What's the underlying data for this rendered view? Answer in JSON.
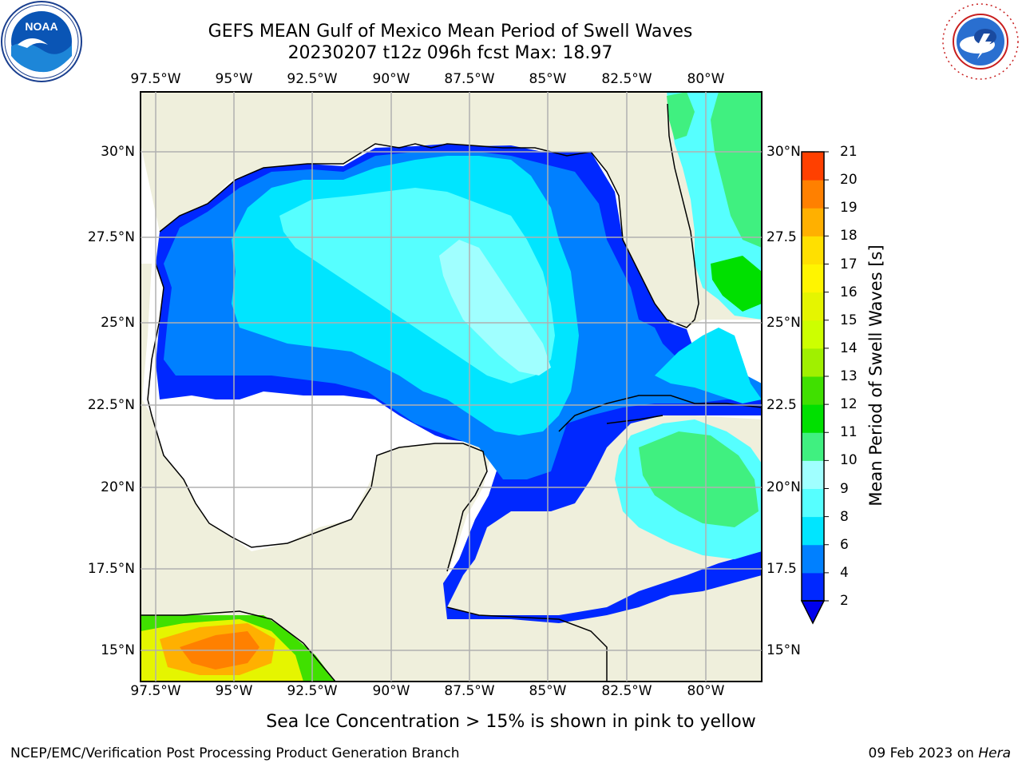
{
  "title": {
    "line1": "GEFS MEAN Gulf of Mexico Mean Period of Swell Waves",
    "line2": "20230207 t12z 096h fcst   Max: 18.97"
  },
  "logos": {
    "left": "noaa-logo",
    "right": "national-weather-service-logo"
  },
  "map": {
    "lon_ticks": [
      "97.5°W",
      "95°W",
      "92.5°W",
      "90°W",
      "87.5°W",
      "85°W",
      "82.5°W",
      "80°W"
    ],
    "lat_ticks_left": [
      "30°N",
      "27.5°N",
      "25°N",
      "22.5°N",
      "20°N",
      "17.5°N",
      "15°N"
    ],
    "lat_ticks_right": [
      "30°N",
      "27.5",
      "25°N",
      "22.5",
      "20°N",
      "17.5",
      "15°N"
    ],
    "land_color": "#efefdc",
    "nodata_color": "#ffffff",
    "grid": true
  },
  "colorbar": {
    "label": "Mean Period of Swell Waves [s]",
    "ticks": [
      "2",
      "4",
      "6",
      "8",
      "9",
      "10",
      "11",
      "12",
      "13",
      "14",
      "15",
      "16",
      "17",
      "18",
      "19",
      "20",
      "21"
    ],
    "colors": [
      "#0028ff",
      "#0080ff",
      "#00e5ff",
      "#56ffff",
      "#a0ffff",
      "#40f080",
      "#00e000",
      "#40e000",
      "#a0f000",
      "#cdff00",
      "#e5f500",
      "#fff500",
      "#ffe000",
      "#ffb000",
      "#ff8000",
      "#ff4000",
      "#ff1000"
    ],
    "extend": "min",
    "extend_color": "#0000ee"
  },
  "footer": {
    "note": "Sea Ice Concentration > 15% is shown in pink to yellow",
    "credit": "NCEP/EMC/Verification Post Processing Product Generation Branch",
    "date": "09 Feb 2023 on ",
    "machine": "Hera"
  }
}
